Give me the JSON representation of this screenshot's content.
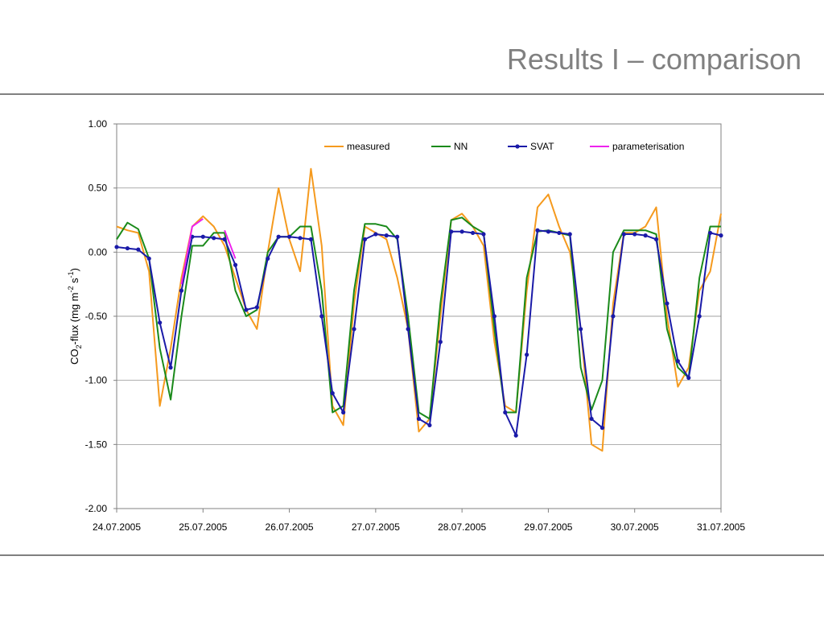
{
  "chart_data": {
    "type": "line",
    "title": "Results I – comparison",
    "y_label_parts": [
      "CO",
      "2",
      "-flux (mg m",
      "-2",
      " s",
      "-1",
      ")"
    ],
    "xlim": [
      0,
      7
    ],
    "xticks": [
      {
        "value": 0,
        "label": "24.07.2005"
      },
      {
        "value": 1,
        "label": "25.07.2005"
      },
      {
        "value": 2,
        "label": "26.07.2005"
      },
      {
        "value": 3,
        "label": "27.07.2005"
      },
      {
        "value": 4,
        "label": "28.07.2005"
      },
      {
        "value": 5,
        "label": "29.07.2005"
      },
      {
        "value": 6,
        "label": "30.07.2005"
      },
      {
        "value": 7,
        "label": "31.07.2005"
      }
    ],
    "ylim": [
      -2,
      1
    ],
    "yticks": [
      {
        "value": -2,
        "label": "-2.00"
      },
      {
        "value": -1.5,
        "label": "-1.50"
      },
      {
        "value": -1,
        "label": "-1.00"
      },
      {
        "value": -0.5,
        "label": "-0.50"
      },
      {
        "value": 0,
        "label": "0.00"
      },
      {
        "value": 0.5,
        "label": "0.50"
      },
      {
        "value": 1,
        "label": "1.00"
      }
    ],
    "grid": true,
    "legend": "top",
    "x": [
      0,
      0.125,
      0.25,
      0.375,
      0.5,
      0.625,
      0.75,
      0.875,
      1,
      1.125,
      1.25,
      1.375,
      1.5,
      1.625,
      1.75,
      1.875,
      2,
      2.125,
      2.25,
      2.375,
      2.5,
      2.625,
      2.75,
      2.875,
      3,
      3.125,
      3.25,
      3.375,
      3.5,
      3.625,
      3.75,
      3.875,
      4,
      4.125,
      4.25,
      4.375,
      4.5,
      4.625,
      4.75,
      4.875,
      5,
      5.125,
      5.25,
      5.375,
      5.5,
      5.625,
      5.75,
      5.875,
      6,
      6.125,
      6.25,
      6.375,
      6.5,
      6.625,
      6.75,
      6.875,
      7
    ],
    "series": [
      {
        "name": "measured",
        "color": "#f59a1e",
        "marker": false,
        "values": [
          0.2,
          0.17,
          0.15,
          -0.15,
          -1.2,
          -0.75,
          -0.2,
          0.2,
          0.28,
          0.2,
          0.05,
          -0.2,
          -0.45,
          -0.6,
          0.0,
          0.5,
          0.1,
          -0.15,
          0.65,
          0.05,
          -1.2,
          -1.35,
          -0.4,
          0.2,
          0.15,
          0.1,
          -0.2,
          -0.6,
          -1.4,
          -1.3,
          -0.5,
          0.25,
          0.3,
          0.2,
          0.05,
          -0.7,
          -1.2,
          -1.25,
          -0.3,
          0.35,
          0.45,
          0.2,
          0.0,
          -0.6,
          -1.5,
          -1.55,
          -0.4,
          0.15,
          0.15,
          0.2,
          0.35,
          -0.5,
          -1.05,
          -0.9,
          -0.3,
          -0.15,
          0.3
        ]
      },
      {
        "name": "NN",
        "color": "#1a8a1a",
        "marker": false,
        "values": [
          0.1,
          0.23,
          0.18,
          -0.05,
          -0.75,
          -1.15,
          -0.5,
          0.05,
          0.05,
          0.15,
          0.15,
          -0.3,
          -0.5,
          -0.45,
          0.0,
          0.12,
          0.12,
          0.2,
          0.2,
          -0.3,
          -1.25,
          -1.2,
          -0.3,
          0.22,
          0.22,
          0.2,
          0.1,
          -0.5,
          -1.25,
          -1.3,
          -0.4,
          0.25,
          0.27,
          0.2,
          0.15,
          -0.6,
          -1.25,
          -1.25,
          -0.2,
          0.16,
          0.17,
          0.15,
          0.13,
          -0.9,
          -1.23,
          -1.0,
          0.0,
          0.17,
          0.17,
          0.17,
          0.14,
          -0.6,
          -0.9,
          -0.98,
          -0.2,
          0.2,
          0.2
        ]
      },
      {
        "name": "SVAT",
        "color": "#1a1aa8",
        "marker": true,
        "values": [
          0.04,
          0.03,
          0.02,
          -0.05,
          -0.55,
          -0.9,
          -0.3,
          0.12,
          0.12,
          0.11,
          0.1,
          -0.1,
          -0.45,
          -0.43,
          -0.05,
          0.12,
          0.12,
          0.11,
          0.1,
          -0.5,
          -1.1,
          -1.25,
          -0.6,
          0.1,
          0.14,
          0.13,
          0.12,
          -0.6,
          -1.3,
          -1.35,
          -0.7,
          0.16,
          0.16,
          0.15,
          0.14,
          -0.5,
          -1.25,
          -1.43,
          -0.8,
          0.17,
          0.16,
          0.15,
          0.14,
          -0.6,
          -1.3,
          -1.37,
          -0.5,
          0.14,
          0.14,
          0.13,
          0.1,
          -0.4,
          -0.85,
          -0.98,
          -0.5,
          0.15,
          0.13
        ]
      },
      {
        "name": "parameterisation",
        "color": "#ee22ee",
        "marker": false,
        "values": [
          null,
          null,
          null,
          null,
          null,
          null,
          -0.25,
          0.2,
          0.26,
          null,
          0.17,
          -0.05,
          null,
          null,
          null,
          null,
          null,
          null,
          null,
          null,
          null,
          null,
          null,
          null,
          null,
          null,
          null,
          null,
          null,
          null,
          null,
          null,
          null,
          null,
          null,
          null,
          null,
          null,
          null,
          null,
          null,
          null,
          null,
          null,
          null,
          null,
          null,
          null,
          null,
          null,
          null,
          null,
          null,
          null,
          null,
          null,
          null
        ]
      }
    ]
  }
}
